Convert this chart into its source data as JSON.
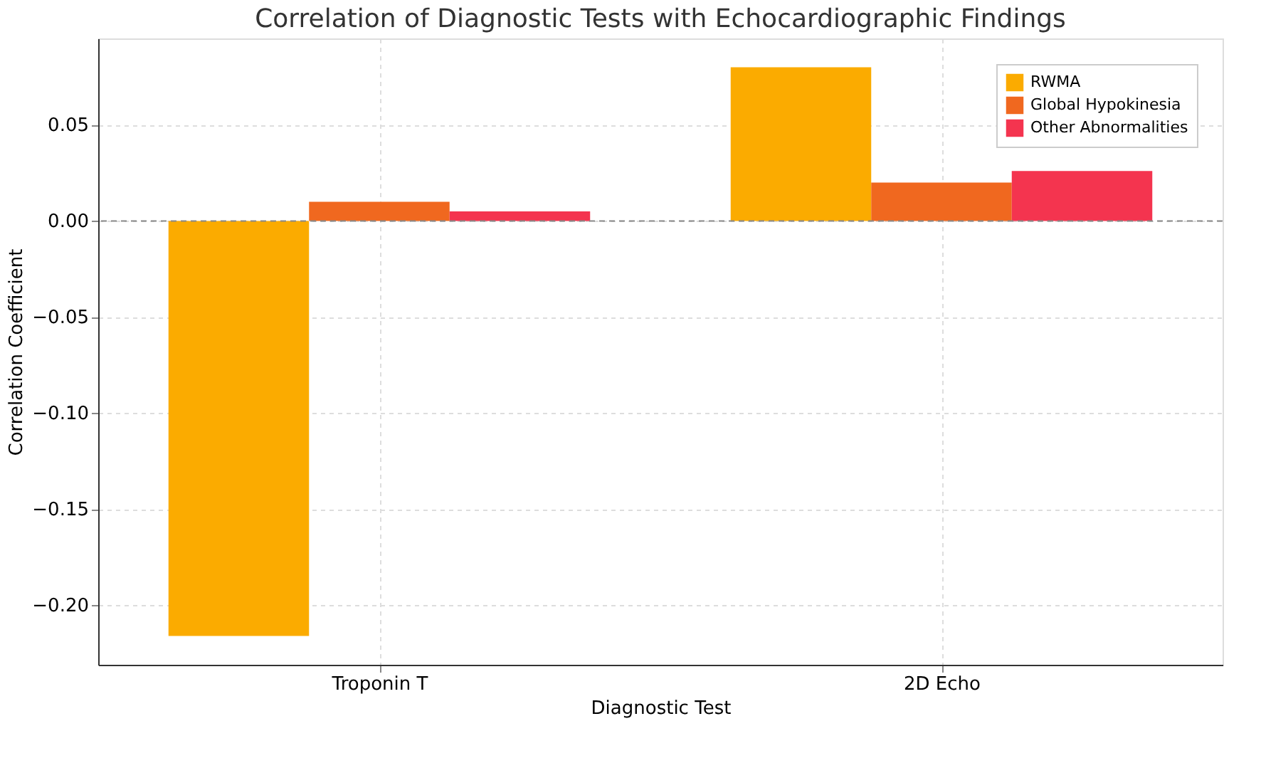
{
  "chart_data": {
    "type": "bar",
    "title": "Correlation of Diagnostic Tests with Echocardiographic Findings",
    "xlabel": "Diagnostic Test",
    "ylabel": "Correlation Coefficient",
    "categories": [
      "Troponin T",
      "2D Echo"
    ],
    "series": [
      {
        "name": "RWMA",
        "color": "#fbab00",
        "values": [
          -0.216,
          0.08
        ]
      },
      {
        "name": "Global Hypokinesia",
        "color": "#f0681f",
        "values": [
          0.01,
          0.02
        ]
      },
      {
        "name": "Other Abnormalities",
        "color": "#f4344f",
        "values": [
          0.005,
          0.026
        ]
      }
    ],
    "ylim": [
      -0.231,
      0.095
    ],
    "yticks": [
      {
        "value": -0.2,
        "label": "−0.20"
      },
      {
        "value": -0.15,
        "label": "−0.15"
      },
      {
        "value": -0.1,
        "label": "−0.10"
      },
      {
        "value": -0.05,
        "label": "−0.05"
      },
      {
        "value": 0,
        "label": "0.00"
      },
      {
        "value": 0.05,
        "label": "0.05"
      }
    ],
    "ref_lines": [
      {
        "axis": "y",
        "value": 0,
        "color": "#888888",
        "line_style": "dashed"
      }
    ],
    "grid": true,
    "legend": "top right"
  }
}
